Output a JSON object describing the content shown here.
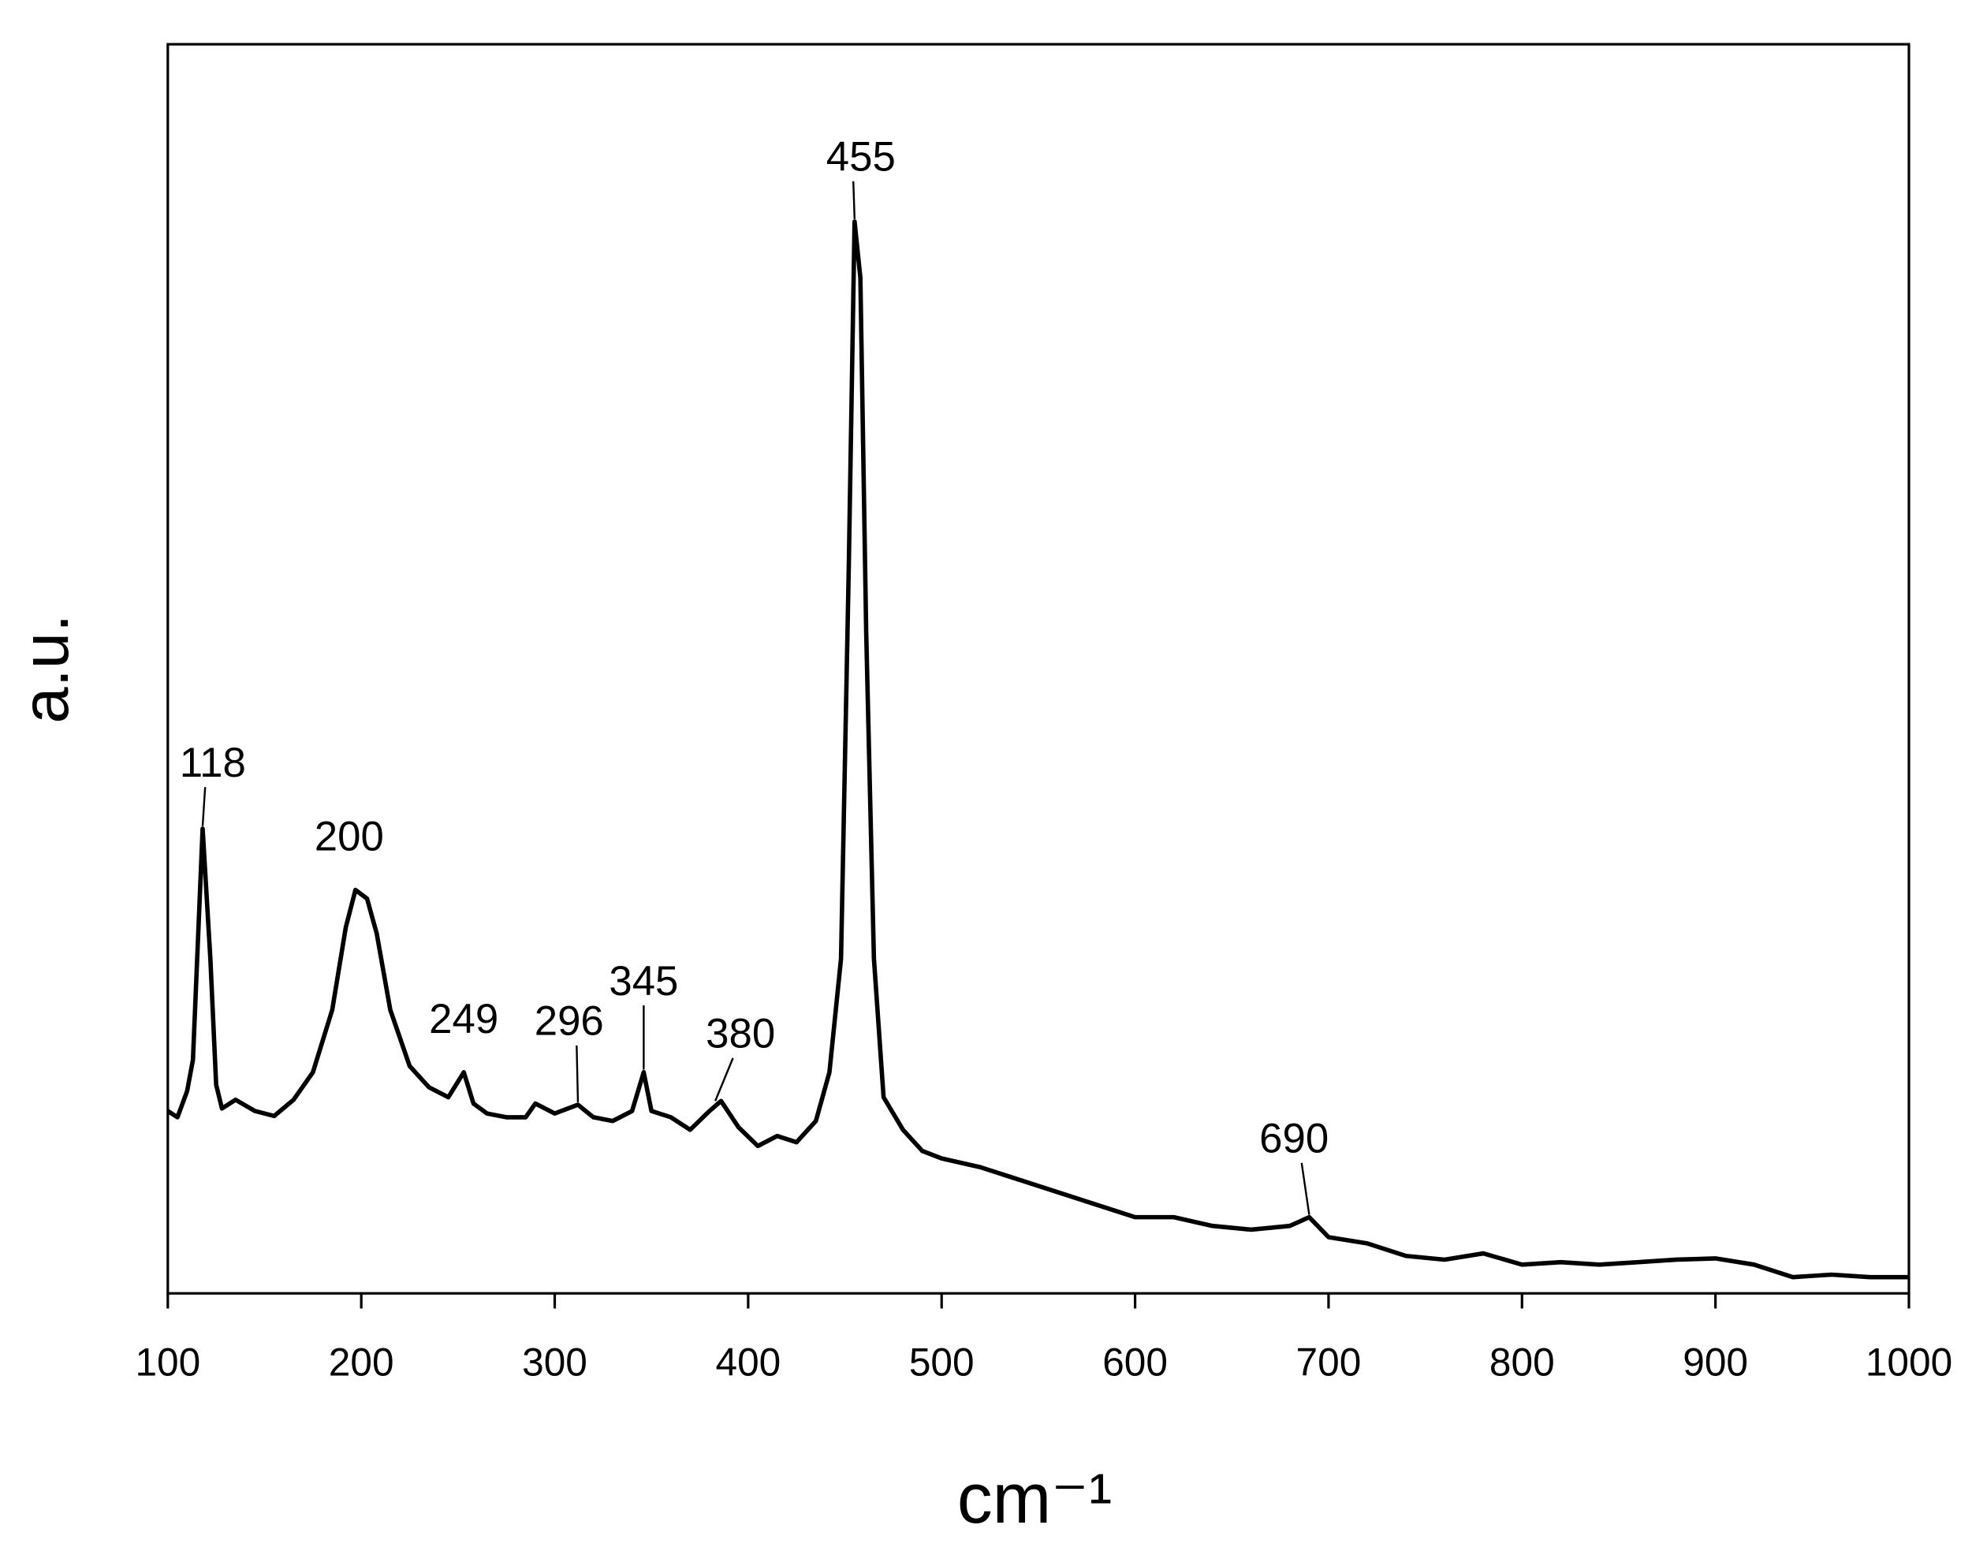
{
  "chart_data": {
    "type": "line",
    "xlabel": "cm⁻¹",
    "ylabel": "a.u.",
    "xlim": [
      100,
      1000
    ],
    "xticks": [
      100,
      200,
      300,
      400,
      500,
      600,
      700,
      800,
      900,
      1000
    ],
    "ylim": [
      0,
      100
    ],
    "series": [
      {
        "color": "#000000",
        "x": [
          100,
          105,
          110,
          113,
          118,
          122,
          125,
          128,
          135,
          145,
          155,
          165,
          175,
          185,
          192,
          197,
          203,
          208,
          215,
          225,
          235,
          245,
          253,
          258,
          265,
          275,
          285,
          290,
          300,
          312,
          320,
          330,
          340,
          346,
          350,
          360,
          370,
          380,
          386,
          395,
          405,
          415,
          425,
          435,
          442,
          448,
          452,
          455,
          458,
          461,
          465,
          470,
          480,
          490,
          500,
          520,
          540,
          560,
          580,
          600,
          620,
          640,
          660,
          680,
          690,
          700,
          720,
          740,
          760,
          780,
          800,
          820,
          840,
          860,
          880,
          900,
          920,
          940,
          960,
          980,
          1000
        ],
        "values": [
          14.6,
          14.1,
          16.2,
          18.7,
          37.2,
          26.8,
          16.7,
          14.8,
          15.5,
          14.6,
          14.2,
          15.5,
          17.7,
          22.7,
          29.3,
          32.3,
          31.6,
          28.8,
          22.7,
          18.2,
          16.5,
          15.7,
          17.7,
          15.2,
          14.4,
          14.1,
          14.1,
          15.2,
          14.4,
          15.1,
          14.1,
          13.8,
          14.6,
          17.7,
          14.6,
          14.1,
          13.1,
          14.6,
          15.4,
          13.3,
          11.8,
          12.6,
          12.1,
          13.8,
          17.7,
          26.8,
          58.1,
          85.8,
          81.3,
          53.0,
          26.8,
          15.7,
          13.1,
          11.4,
          10.8,
          10.1,
          9.1,
          8.1,
          7.1,
          6.1,
          6.1,
          5.4,
          5.1,
          5.4,
          6.1,
          4.5,
          4.0,
          3.0,
          2.7,
          3.2,
          2.3,
          2.5,
          2.3,
          2.5,
          2.7,
          2.8,
          2.3,
          1.3,
          1.5,
          1.3,
          1.3
        ]
      }
    ],
    "annotations": [
      {
        "label": "118",
        "x": 118,
        "y": 37.2
      },
      {
        "label": "200",
        "x": 197,
        "y": 32.3
      },
      {
        "label": "249",
        "x": 253,
        "y": 17.7
      },
      {
        "label": "296",
        "x": 312,
        "y": 15.1
      },
      {
        "label": "345",
        "x": 346,
        "y": 17.7
      },
      {
        "label": "380",
        "x": 383,
        "y": 15.2
      },
      {
        "label": "455",
        "x": 455,
        "y": 85.8
      },
      {
        "label": "690",
        "x": 690,
        "y": 6.1
      }
    ]
  }
}
